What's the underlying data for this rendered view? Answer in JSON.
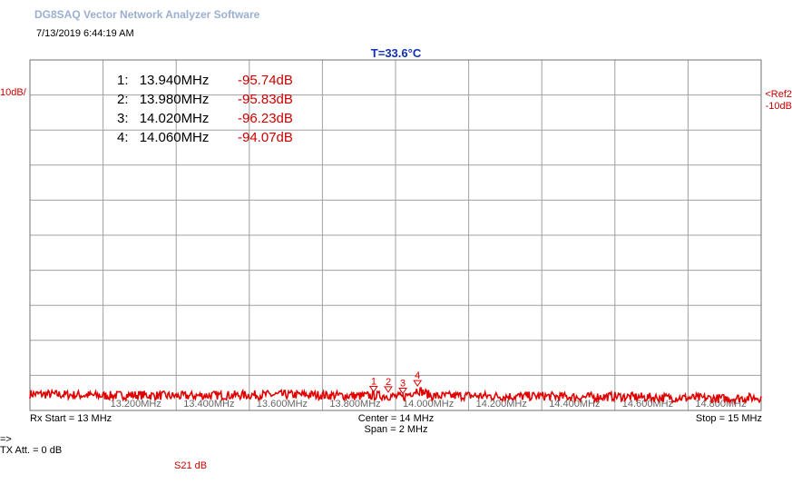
{
  "app": {
    "title": "DG8SAQ Vector Network Analyzer Software",
    "timestamp": "7/13/2019   6:44:19 AM"
  },
  "temperature": "T=33.6°C",
  "scale_label": "10dB/",
  "ref": {
    "line1": "<Ref2",
    "line2": "-10dB"
  },
  "markers": [
    {
      "num": "1:",
      "freq": "13.940MHz",
      "value": "-95.74dB",
      "tag": "1"
    },
    {
      "num": "2:",
      "freq": "13.980MHz",
      "value": "-95.83dB",
      "tag": "2"
    },
    {
      "num": "3:",
      "freq": "14.020MHz",
      "value": "-96.23dB",
      "tag": "3"
    },
    {
      "num": "4:",
      "freq": "14.060MHz",
      "value": "-94.07dB",
      "tag": "4"
    }
  ],
  "footer": {
    "rx_start": "Rx Start = 13 MHz",
    "center": "Center = 14 MHz",
    "span": "Span = 2 MHz",
    "stop": "Stop = 15 MHz",
    "arrow": "=>",
    "tx_att": "TX Att.  = 0 dB",
    "trace": "S21  dB"
  },
  "colors": {
    "trace": "#e00000",
    "grid": "#a0a0a0",
    "frame": "#707070",
    "marker_text": "#cc0000",
    "temperature": "#1030b0"
  },
  "chart_data": {
    "type": "line",
    "title": "",
    "xlabel": "",
    "ylabel": "",
    "xlim": [
      13.0,
      15.0
    ],
    "ylim": [
      -100,
      0
    ],
    "x_tick_labels": [
      "13.200MHz",
      "13.400MHz",
      "13.600MHz",
      "13.800MHz",
      "14.000MHz",
      "14.200MHz",
      "14.400MHz",
      "14.600MHz",
      "14.800MHz"
    ],
    "x_ticks": [
      13.2,
      13.4,
      13.6,
      13.8,
      14.0,
      14.2,
      14.4,
      14.6,
      14.8
    ],
    "grid": true,
    "series": [
      {
        "name": "S21 dB",
        "x": [
          13.0,
          13.1,
          13.2,
          13.3,
          13.4,
          13.5,
          13.6,
          13.7,
          13.8,
          13.9,
          13.94,
          13.98,
          14.02,
          14.06,
          14.1,
          14.2,
          14.3,
          14.4,
          14.5,
          14.6,
          14.7,
          14.8,
          14.9,
          15.0
        ],
        "y": [
          -95.3,
          -95.5,
          -95.8,
          -95.6,
          -95.9,
          -95.7,
          -95.6,
          -95.5,
          -95.6,
          -95.9,
          -95.74,
          -95.83,
          -96.23,
          -94.07,
          -95.9,
          -95.8,
          -96.0,
          -95.9,
          -96.2,
          -96.0,
          -96.3,
          -96.4,
          -96.6,
          -96.3
        ],
        "noise_db": 1.3
      }
    ],
    "markers": [
      {
        "label": "1",
        "x": 13.94,
        "y": -95.74
      },
      {
        "label": "2",
        "x": 13.98,
        "y": -95.83
      },
      {
        "label": "3",
        "x": 14.02,
        "y": -96.23
      },
      {
        "label": "4",
        "x": 14.06,
        "y": -94.07
      }
    ]
  }
}
